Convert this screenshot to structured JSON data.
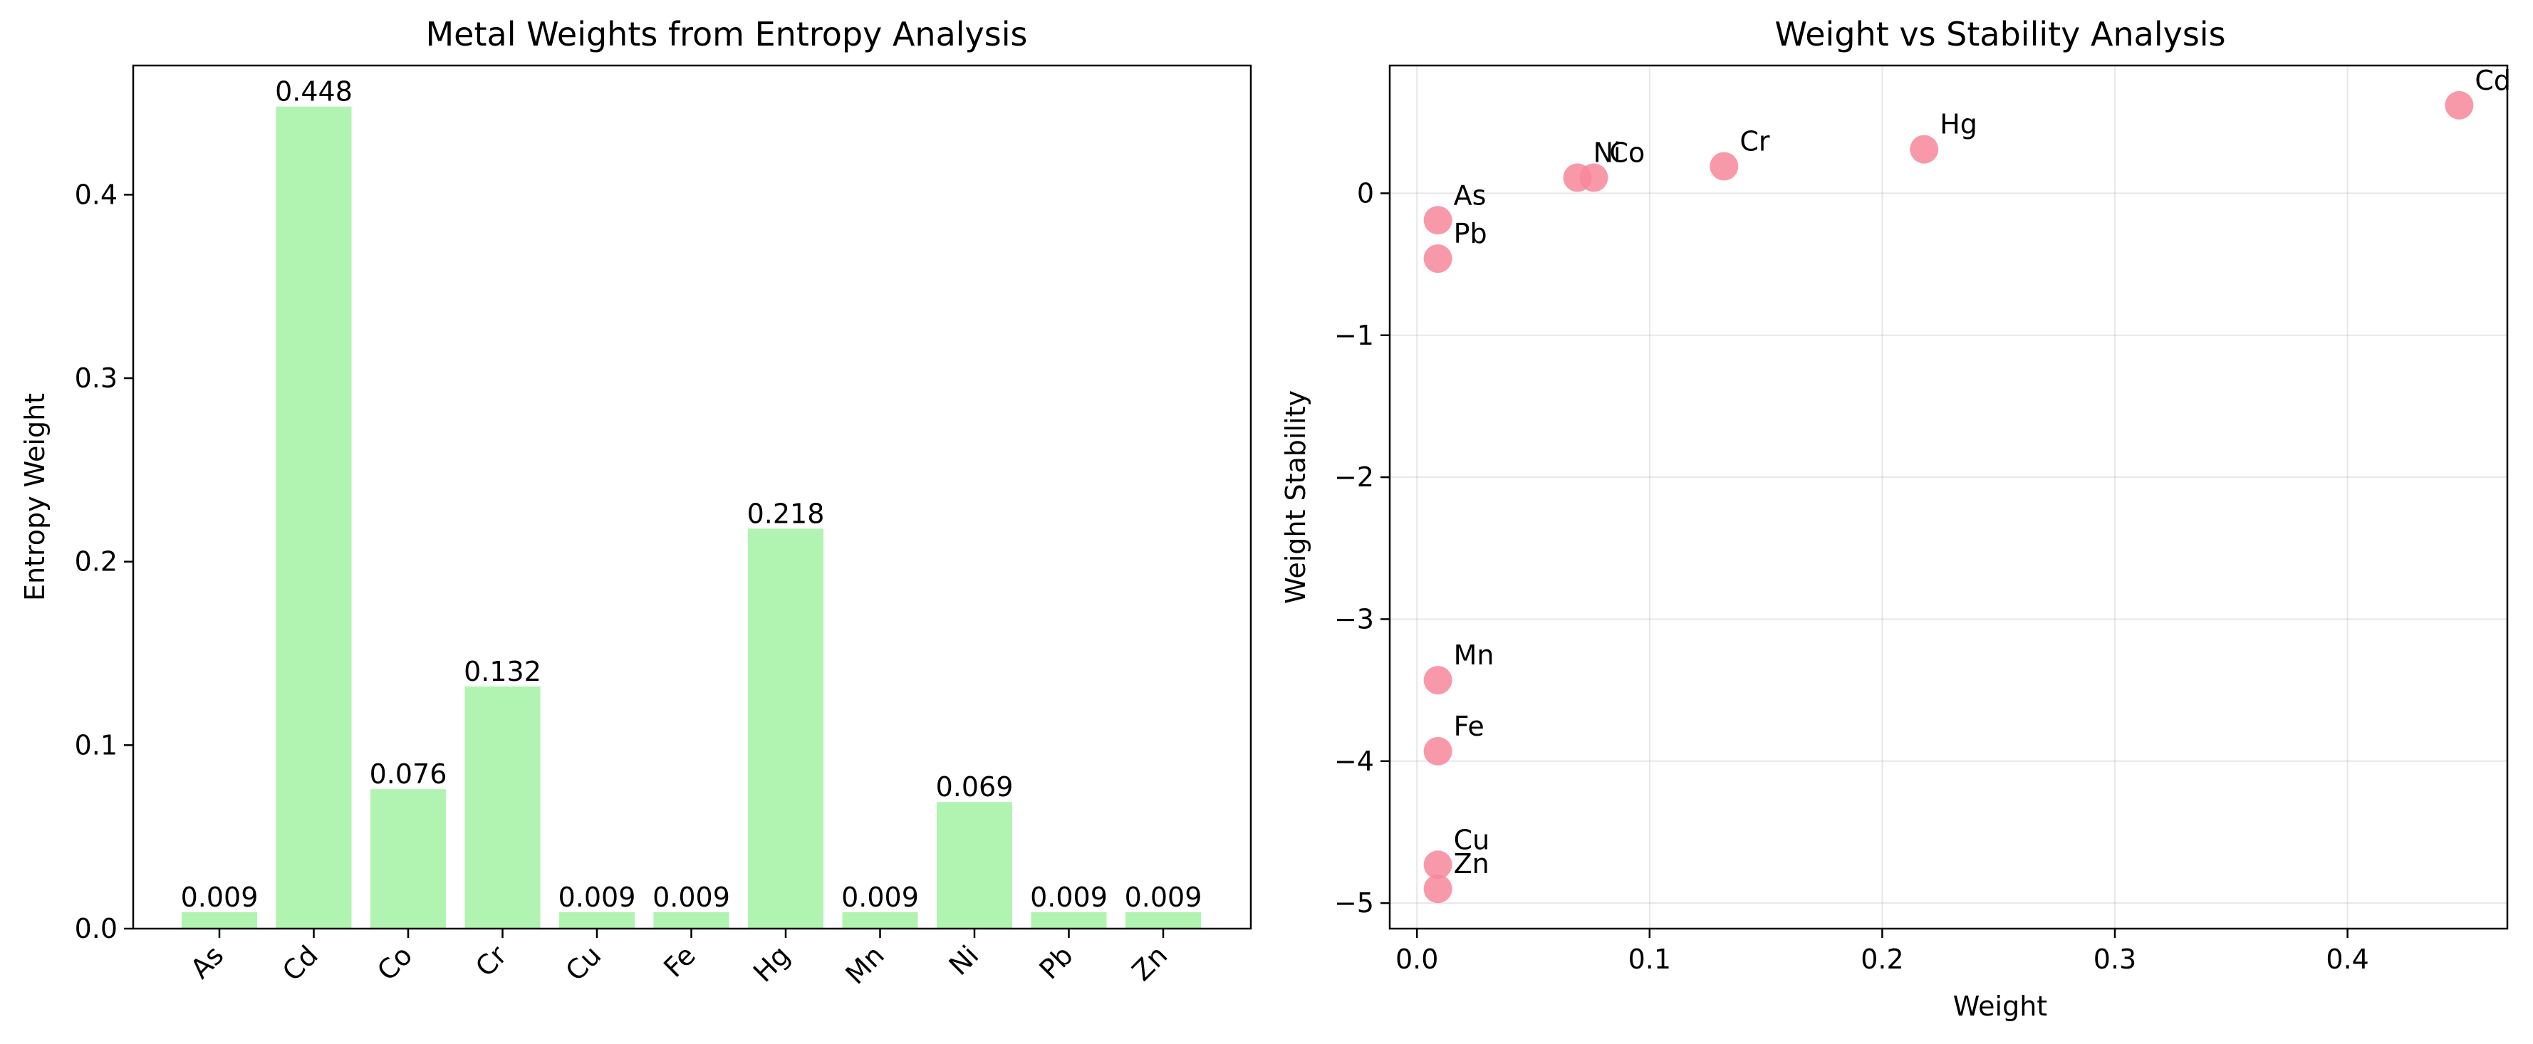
{
  "chart_data": [
    {
      "type": "bar",
      "title": "Metal Weights from Entropy Analysis",
      "xlabel": "",
      "ylabel": "Entropy Weight",
      "categories": [
        "As",
        "Cd",
        "Co",
        "Cr",
        "Cu",
        "Fe",
        "Hg",
        "Mn",
        "Ni",
        "Pb",
        "Zn"
      ],
      "values": [
        0.009,
        0.448,
        0.076,
        0.132,
        0.009,
        0.009,
        0.218,
        0.009,
        0.069,
        0.009,
        0.009
      ],
      "value_labels": [
        "0.009",
        "0.448",
        "0.076",
        "0.132",
        "0.009",
        "0.009",
        "0.218",
        "0.009",
        "0.069",
        "0.009",
        "0.009"
      ],
      "ylim": [
        0,
        0.4704
      ],
      "yticks": [
        0.0,
        0.1,
        0.2,
        0.3,
        0.4
      ],
      "ytick_labels": [
        "0.0",
        "0.1",
        "0.2",
        "0.3",
        "0.4"
      ],
      "bar_color": "#90ee90",
      "grid": false,
      "legend": "none"
    },
    {
      "type": "scatter",
      "title": "Weight vs Stability Analysis",
      "xlabel": "Weight",
      "ylabel": "Weight Stability",
      "points": [
        {
          "label": "As",
          "x": 0.009,
          "y": -0.19
        },
        {
          "label": "Cd",
          "x": 0.448,
          "y": 0.62
        },
        {
          "label": "Co",
          "x": 0.076,
          "y": 0.11
        },
        {
          "label": "Cr",
          "x": 0.132,
          "y": 0.19
        },
        {
          "label": "Cu",
          "x": 0.009,
          "y": -4.73
        },
        {
          "label": "Fe",
          "x": 0.009,
          "y": -3.93
        },
        {
          "label": "Hg",
          "x": 0.218,
          "y": 0.31
        },
        {
          "label": "Mn",
          "x": 0.009,
          "y": -3.43
        },
        {
          "label": "Ni",
          "x": 0.069,
          "y": 0.11
        },
        {
          "label": "Pb",
          "x": 0.009,
          "y": -0.46
        },
        {
          "label": "Zn",
          "x": 0.009,
          "y": -4.9
        }
      ],
      "xlim": [
        -0.0117,
        0.4687
      ],
      "ylim": [
        -5.18,
        0.9
      ],
      "xticks": [
        0.0,
        0.1,
        0.2,
        0.3,
        0.4
      ],
      "xtick_labels": [
        "0.0",
        "0.1",
        "0.2",
        "0.3",
        "0.4"
      ],
      "yticks": [
        -5,
        -4,
        -3,
        -2,
        -1,
        0
      ],
      "ytick_labels": [
        "−5",
        "−4",
        "−3",
        "−2",
        "−1",
        "0"
      ],
      "marker_color": "#f7879a",
      "grid": true,
      "legend": "none"
    }
  ]
}
